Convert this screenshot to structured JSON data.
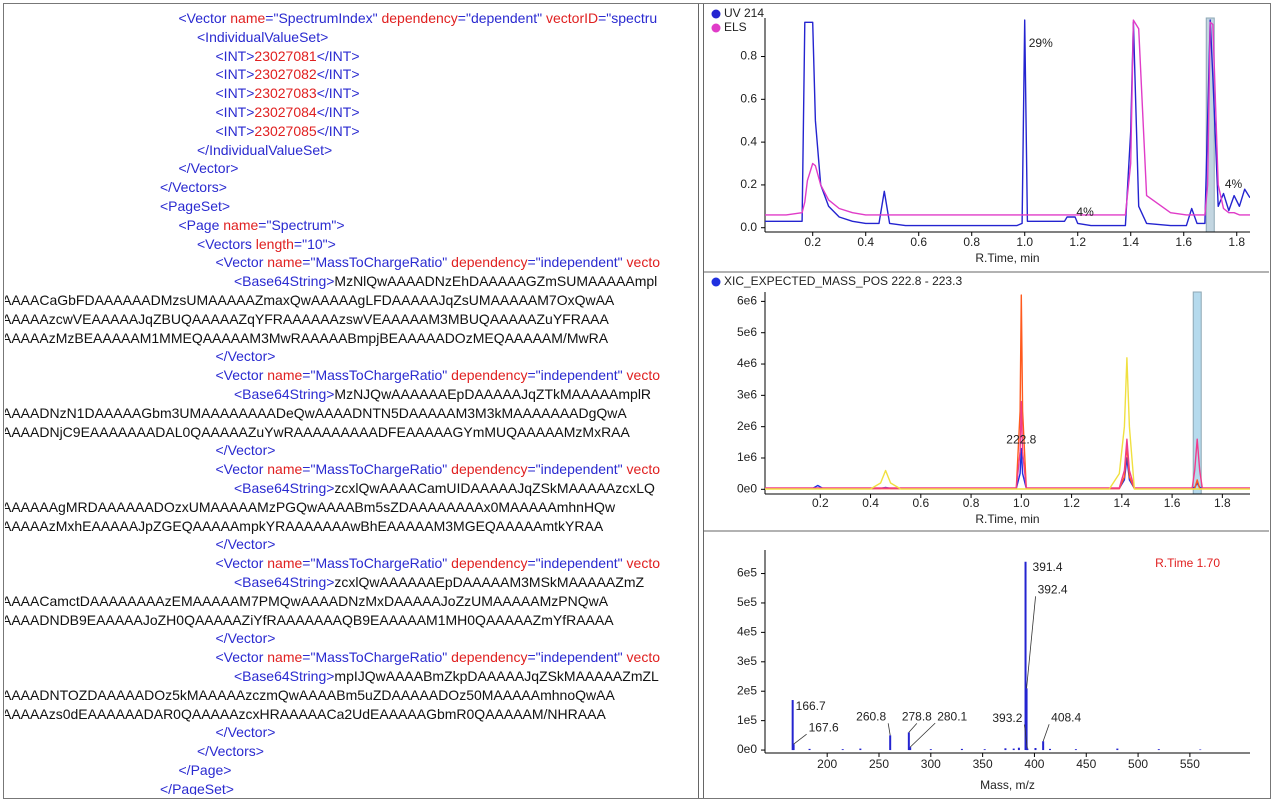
{
  "xml_panel": {
    "lines": [
      "<Vector name=\"SpectrumIndex\" dependency=\"dependent\" vectorID=\"spectru",
      "<IndividualValueSet>",
      "<INT>23027081</INT>",
      "<INT>23027082</INT>",
      "<INT>23027083</INT>",
      "<INT>23027084</INT>",
      "<INT>23027085</INT>",
      "</IndividualValueSet>",
      "</Vector>",
      "</Vectors>",
      "<PageSet>",
      "<Page name=\"Spectrum\">",
      "<Vectors length=\"10\">",
      "<Vector name=\"MassToChargeRatio\" dependency=\"independent\" vecto",
      "<Base64String>MzNlQwAAAADNzEhDAAAAAGZmSUMAAAAAmpl",
      "AAAACaGbFDAAAAAADMzsUMAAAAAZmaxQwAAAAAgLFDAAAAAJqZsUMAAAAAM7OxQwAA",
      "AAAAAzcwVEAAAAAJqZBUQAAAAAZqYFRAAAAAAzswVEAAAAAM3MBUQAAAAAZuYFRAAA",
      "AAAAAzMzBEAAAAAM1MMEQAAAAAM3MwRAAAAABmpjBEAAAAADOzMEQAAAAAM/MwRA",
      "</Vector>",
      "<Vector name=\"MassToChargeRatio\" dependency=\"independent\" vecto",
      "<Base64String>MzNJQwAAAAAAEpDAAAAAJqZTkMAAAAAmplR",
      "AAAADNzN1DAAAAAGbm3UMAAAAAAAADeQwAAAADNTN5DAAAAAM3M3kMAAAAAAADgQwA",
      "AAAADNjC9EAAAAAAADAL0QAAAAAZuYwRAAAAAAAAADFEAAAAAGYmMUQAAAAAMzMxRAA",
      "</Vector>",
      "<Vector name=\"MassToChargeRatio\" dependency=\"independent\" vecto",
      "<Base64String>zcxlQwAAAACamUIDAAAAAJqZSkMAAAAAzcxLQ",
      "AAAAAAgMRDAAAAAADOzxUMAAAAAMzPGQwAAAABm5sZDAAAAAAAAx0MAAAAAmhnHQw",
      "AAAAAzMxhEAAAAAJpZGEQAAAAAmpkYRAAAAAAAwBhEAAAAAM3MGEQAAAAAmtkYRAA",
      "</Vector>",
      "<Vector name=\"MassToChargeRatio\" dependency=\"independent\" vecto",
      "<Base64String>zcxlQwAAAAAAEpDAAAAAM3MSkMAAAAAZmZ",
      "AAAACamctDAAAAAAAAzEMAAAAAM7PMQwAAAADNzMxDAAAAAJoZzUMAAAAAMzPNQwA",
      "AAAADNDB9EAAAAAJoZH0QAAAAAZiYfRAAAAAAAQB9EAAAAAM1MH0QAAAAAZmYfRAAAA",
      "</Vector>",
      "<Vector name=\"MassToChargeRatio\" dependency=\"independent\" vecto",
      "<Base64String>mpIJQwAAAABmZkpDAAAAAJqZSkMAAAAAZmZL",
      "AAAADNTOZDAAAAADOz5kMAAAAAzczmQwAAAABm5uZDAAAAADOz50MAAAAAmhnoQwAA",
      "AAAAAzs0dEAAAAAADAR0QAAAAAzcxHRAAAAACa2UdEAAAAAGbmR0QAAAAAM/NHRAAA",
      "</Vector>",
      "</Vectors>",
      "</Page>",
      "</PageSet>"
    ]
  },
  "chart_data": [
    {
      "type": "line",
      "x": [
        0.02,
        0.1,
        0.16,
        0.17,
        0.18,
        0.2,
        0.21,
        0.23,
        0.26,
        0.3,
        0.35,
        0.4,
        0.45,
        0.47,
        0.49,
        0.55,
        0.7,
        0.85,
        0.97,
        0.99,
        1.0,
        1.01,
        1.03,
        1.1,
        1.15,
        1.16,
        1.19,
        1.2,
        1.25,
        1.35,
        1.38,
        1.4,
        1.41,
        1.43,
        1.46,
        1.55,
        1.61,
        1.63,
        1.65,
        1.68,
        1.69,
        1.7,
        1.71,
        1.73,
        1.75,
        1.77,
        1.79,
        1.81,
        1.83,
        1.85
      ],
      "series": [
        {
          "name": "UV 214",
          "color": "#2424d0",
          "values": [
            0.03,
            0.03,
            0.03,
            0.96,
            0.96,
            0.96,
            0.5,
            0.2,
            0.1,
            0.05,
            0.03,
            0.02,
            0.02,
            0.17,
            0.02,
            0.01,
            0.01,
            0.01,
            0.01,
            0.02,
            0.97,
            0.03,
            0.03,
            0.03,
            0.03,
            0.05,
            0.05,
            0.02,
            0.01,
            0.01,
            0.01,
            0.45,
            0.96,
            0.1,
            0.02,
            0.01,
            0.01,
            0.09,
            0.02,
            0.02,
            0.5,
            0.97,
            0.7,
            0.1,
            0.16,
            0.08,
            0.15,
            0.1,
            0.18,
            0.14
          ]
        },
        {
          "name": "ELS",
          "color": "#e03cc8",
          "values": [
            0.06,
            0.06,
            0.07,
            0.12,
            0.22,
            0.3,
            0.29,
            0.2,
            0.13,
            0.09,
            0.07,
            0.06,
            0.06,
            0.06,
            0.06,
            0.06,
            0.06,
            0.06,
            0.06,
            0.06,
            0.06,
            0.06,
            0.06,
            0.06,
            0.06,
            0.06,
            0.06,
            0.06,
            0.06,
            0.06,
            0.06,
            0.3,
            0.97,
            0.93,
            0.15,
            0.07,
            0.06,
            0.06,
            0.06,
            0.06,
            0.2,
            0.96,
            0.95,
            0.2,
            0.09,
            0.07,
            0.07,
            0.06,
            0.06,
            0.06
          ]
        }
      ],
      "xlim": [
        0.02,
        1.85
      ],
      "ylim": [
        -0.02,
        0.98
      ],
      "xticks": [
        0.2,
        0.4,
        0.6,
        0.8,
        {
          "value": 1,
          "label": "1.0"
        },
        1.2,
        1.4,
        1.6,
        1.8
      ],
      "yticks": [
        {
          "value": 0,
          "label": "0.0"
        },
        0.2,
        0.4,
        0.6,
        0.8
      ],
      "xlabel": "R.Time, min",
      "annotations": [
        {
          "text": "29%",
          "x": 1.0,
          "y": 0.86
        },
        {
          "text": "4%",
          "x": 1.18,
          "y": 0.07
        },
        {
          "text": "4%",
          "x": 1.74,
          "y": 0.2
        }
      ],
      "selection_x": 1.7,
      "selection_color": "#b9cfdc"
    },
    {
      "type": "line",
      "x": [
        -0.02,
        0.17,
        0.19,
        0.21,
        0.4,
        0.44,
        0.46,
        0.48,
        0.52,
        0.95,
        0.98,
        0.995,
        1.0,
        1.005,
        1.02,
        1.05,
        1.35,
        1.39,
        1.41,
        1.42,
        1.43,
        1.45,
        1.49,
        1.65,
        1.68,
        1.69,
        1.7,
        1.71,
        1.72,
        1.75,
        1.91
      ],
      "series": [
        {
          "name": "XIC_EXPECTED_MASS_POS 222.8 - 223.3",
          "color": "#2030e0",
          "values": [
            30000,
            30000,
            120000,
            30000,
            30000,
            30000,
            60000,
            30000,
            30000,
            30000,
            30000,
            500000,
            1300000,
            500000,
            30000,
            30000,
            30000,
            30000,
            300000,
            1000000,
            300000,
            30000,
            30000,
            30000,
            30000,
            60000,
            200000,
            60000,
            30000,
            30000,
            30000
          ]
        },
        {
          "color": "#ff5a1e",
          "values": [
            20000,
            20000,
            20000,
            20000,
            20000,
            20000,
            20000,
            20000,
            20000,
            20000,
            20000,
            2500000,
            6200000,
            2500000,
            20000,
            20000,
            20000,
            20000,
            400000,
            1400000,
            400000,
            20000,
            20000,
            20000,
            20000,
            20000,
            300000,
            20000,
            20000,
            20000,
            20000
          ]
        },
        {
          "color": "#f03c8c",
          "values": [
            40000,
            40000,
            40000,
            40000,
            40000,
            40000,
            40000,
            40000,
            40000,
            40000,
            40000,
            1200000,
            2800000,
            1200000,
            40000,
            40000,
            40000,
            40000,
            600000,
            1600000,
            600000,
            40000,
            40000,
            40000,
            40000,
            600000,
            1600000,
            600000,
            40000,
            40000,
            40000
          ]
        },
        {
          "color": "#f0e040",
          "values": [
            10000,
            10000,
            10000,
            10000,
            10000,
            200000,
            600000,
            200000,
            10000,
            10000,
            10000,
            10000,
            10000,
            10000,
            10000,
            10000,
            10000,
            500000,
            2000000,
            4200000,
            2000000,
            10000,
            10000,
            10000,
            10000,
            10000,
            10000,
            10000,
            10000,
            10000,
            10000
          ]
        }
      ],
      "xlim": [
        -0.02,
        1.91
      ],
      "ylim": [
        -150000,
        6300000
      ],
      "xticks": [
        0.2,
        0.4,
        0.6,
        0.8,
        {
          "value": 1,
          "label": "1.0"
        },
        1.2,
        1.4,
        1.6,
        1.8
      ],
      "yticks": [
        {
          "value": 0,
          "label": "0e0"
        },
        {
          "value": 1000000,
          "label": "1e6"
        },
        {
          "value": 2000000,
          "label": "2e6"
        },
        {
          "value": 3000000,
          "label": "3e6"
        },
        {
          "value": 4000000,
          "label": "4e6"
        },
        {
          "value": 5000000,
          "label": "5e6"
        },
        {
          "value": 6000000,
          "label": "6e6"
        }
      ],
      "xlabel": "R.Time, min",
      "annotations": [
        {
          "text": "222.8",
          "x": 1.0,
          "y": 1570000
        }
      ],
      "selection_x": 1.7,
      "selection_color": "#a9d4ea"
    },
    {
      "type": "stem",
      "title": "R.Time 1.70",
      "title_color": "#e02020",
      "series": [
        {
          "color": "#2424d0",
          "x": [
            166.7,
            167.6,
            260.8,
            278.8,
            280.1,
            391.4,
            392.4,
            393.2,
            408.4
          ],
          "values": [
            170000,
            20000,
            50000,
            60000,
            10000,
            640000,
            210000,
            5000,
            30000
          ]
        },
        {
          "color": "#2424d0",
          "x": [
            183,
            215,
            232,
            300,
            330,
            352,
            372,
            380,
            385,
            401,
            415,
            440,
            480,
            520,
            560
          ],
          "values": [
            4000,
            3000,
            5000,
            3000,
            4000,
            3000,
            6000,
            5000,
            8000,
            7000,
            4000,
            3000,
            5000,
            3000,
            2000
          ]
        }
      ],
      "xlim": [
        140,
        608
      ],
      "ylim": [
        -10000,
        680000
      ],
      "xticks": [
        200,
        250,
        300,
        350,
        400,
        450,
        500,
        550
      ],
      "yticks": [
        {
          "value": 0,
          "label": "0e0"
        },
        {
          "value": 100000,
          "label": "1e5"
        },
        {
          "value": 200000,
          "label": "2e5"
        },
        {
          "value": 300000,
          "label": "3e5"
        },
        {
          "value": 400000,
          "label": "4e5"
        },
        {
          "value": 500000,
          "label": "5e5"
        },
        {
          "value": 600000,
          "label": "6e5"
        }
      ],
      "xlabel": "Mass, m/z"
    }
  ]
}
